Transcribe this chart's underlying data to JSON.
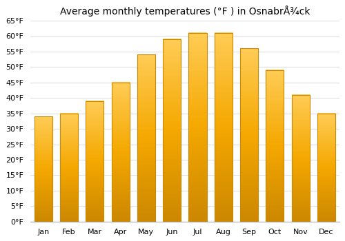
{
  "title": "Average monthly temperatures (°F ) in OsnabrÅ¾ck",
  "months": [
    "Jan",
    "Feb",
    "Mar",
    "Apr",
    "May",
    "Jun",
    "Jul",
    "Aug",
    "Sep",
    "Oct",
    "Nov",
    "Dec"
  ],
  "values": [
    34,
    35,
    39,
    45,
    54,
    59,
    61,
    61,
    56,
    49,
    41,
    35
  ],
  "bar_color_main": "#F5A800",
  "bar_color_light": "#FFCC55",
  "bar_color_edge": "#CC8800",
  "ylim_min": 0,
  "ylim_max": 65,
  "ytick_step": 5,
  "background_color": "#ffffff",
  "plot_bg_color": "#ffffff",
  "grid_color": "#dddddd",
  "title_fontsize": 10,
  "tick_fontsize": 8,
  "bar_width": 0.7
}
